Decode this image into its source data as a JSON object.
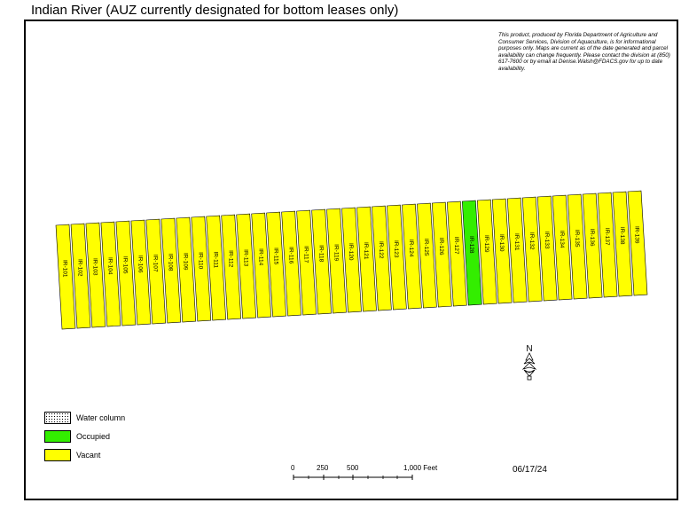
{
  "title": "Indian River (AUZ currently designated for bottom leases only)",
  "disclaimer": "This product, produced by Florida Department of Agriculture and Consumer Services, Division of Aquaculture, is for informational purposes only.  Maps are current as of the date generated and parcel availability can change frequently. Please contact the division at (850) 617-7600 or by email at Denise.Walsh@FDACS.gov for up to date availability.",
  "map_date": "06/17/24",
  "north_label": "N",
  "colors": {
    "vacant": "#ffff00",
    "occupied": "#33ee00",
    "water_column": "#ffffff",
    "outline": "#000000"
  },
  "legend": [
    {
      "label": "Water column",
      "status": "water_column"
    },
    {
      "label": "Occupied",
      "status": "occupied"
    },
    {
      "label": "Vacant",
      "status": "vacant"
    }
  ],
  "scale_bar": {
    "labels": [
      "0",
      "250",
      "500",
      "1,000 Feet"
    ]
  },
  "parcels": [
    {
      "id": "IR-101",
      "status": "vacant"
    },
    {
      "id": "IR-102",
      "status": "vacant"
    },
    {
      "id": "IR-103",
      "status": "vacant"
    },
    {
      "id": "IR-104",
      "status": "vacant"
    },
    {
      "id": "IR-105",
      "status": "vacant"
    },
    {
      "id": "IR-106",
      "status": "vacant"
    },
    {
      "id": "IR-107",
      "status": "vacant"
    },
    {
      "id": "IR-108",
      "status": "vacant"
    },
    {
      "id": "IR-109",
      "status": "vacant"
    },
    {
      "id": "IR-110",
      "status": "vacant"
    },
    {
      "id": "IR-111",
      "status": "vacant"
    },
    {
      "id": "IR-112",
      "status": "vacant"
    },
    {
      "id": "IR-113",
      "status": "vacant"
    },
    {
      "id": "IR-114",
      "status": "vacant"
    },
    {
      "id": "IR-115",
      "status": "vacant"
    },
    {
      "id": "IR-116",
      "status": "vacant"
    },
    {
      "id": "IR-117",
      "status": "vacant"
    },
    {
      "id": "IR-118",
      "status": "vacant"
    },
    {
      "id": "IR-119",
      "status": "vacant"
    },
    {
      "id": "IR-120",
      "status": "vacant"
    },
    {
      "id": "IR-121",
      "status": "vacant"
    },
    {
      "id": "IR-122",
      "status": "vacant"
    },
    {
      "id": "IR-123",
      "status": "vacant"
    },
    {
      "id": "IR-124",
      "status": "vacant"
    },
    {
      "id": "IR-125",
      "status": "vacant"
    },
    {
      "id": "IR-126",
      "status": "vacant"
    },
    {
      "id": "IR-127",
      "status": "vacant"
    },
    {
      "id": "IR-128",
      "status": "occupied"
    },
    {
      "id": "IR-129",
      "status": "vacant"
    },
    {
      "id": "IR-130",
      "status": "vacant"
    },
    {
      "id": "IR-131",
      "status": "vacant"
    },
    {
      "id": "IR-132",
      "status": "vacant"
    },
    {
      "id": "IR-133",
      "status": "vacant"
    },
    {
      "id": "IR-134",
      "status": "vacant"
    },
    {
      "id": "IR-135",
      "status": "vacant"
    },
    {
      "id": "IR-136",
      "status": "vacant"
    },
    {
      "id": "IR-137",
      "status": "vacant"
    },
    {
      "id": "IR-138",
      "status": "vacant"
    },
    {
      "id": "IR-139",
      "status": "vacant"
    }
  ]
}
